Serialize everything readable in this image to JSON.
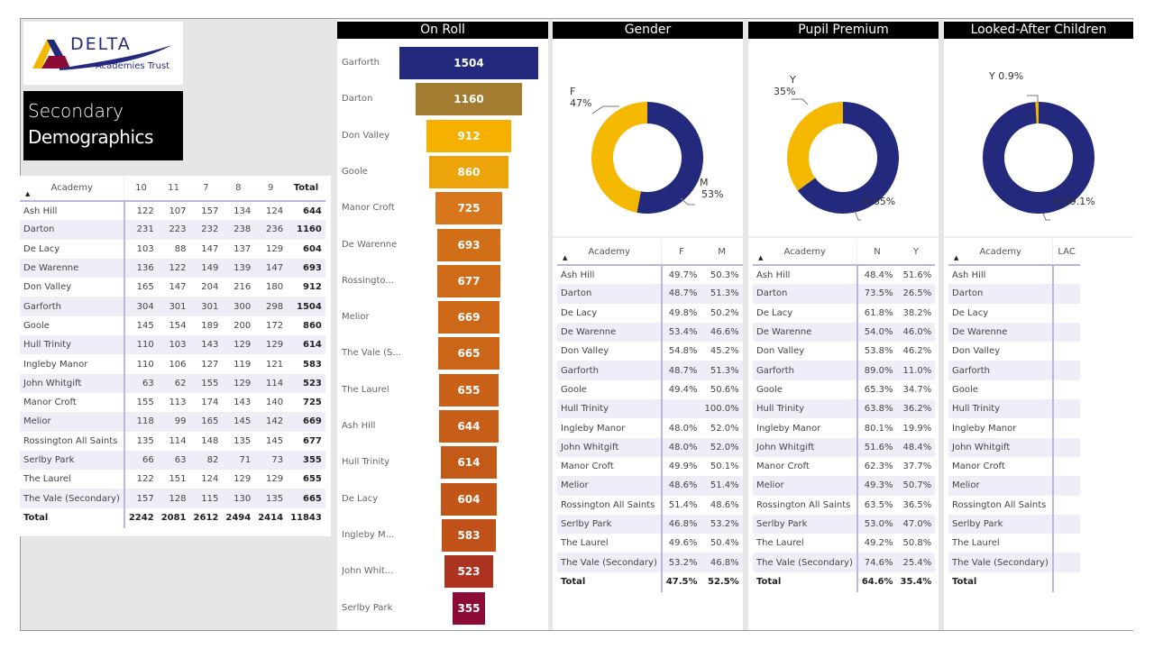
{
  "logo": {
    "brand": "DELTA",
    "subtitle": "Academies Trust"
  },
  "title": {
    "line1": "Secondary",
    "line2": "Demographics"
  },
  "colors": {
    "navy": "#232a7e",
    "gold": "#f5b800",
    "header_bg": "#000000",
    "stripe": "#eeeef8"
  },
  "left_table": {
    "headers": [
      "Academy",
      "10",
      "11",
      "7",
      "8",
      "9",
      "Total"
    ],
    "rows": [
      [
        "Ash Hill",
        "122",
        "107",
        "157",
        "134",
        "124",
        "644"
      ],
      [
        "Darton",
        "231",
        "223",
        "232",
        "238",
        "236",
        "1160"
      ],
      [
        "De Lacy",
        "103",
        "88",
        "147",
        "137",
        "129",
        "604"
      ],
      [
        "De Warenne",
        "136",
        "122",
        "149",
        "139",
        "147",
        "693"
      ],
      [
        "Don Valley",
        "165",
        "147",
        "204",
        "216",
        "180",
        "912"
      ],
      [
        "Garforth",
        "304",
        "301",
        "301",
        "300",
        "298",
        "1504"
      ],
      [
        "Goole",
        "145",
        "154",
        "189",
        "200",
        "172",
        "860"
      ],
      [
        "Hull Trinity",
        "110",
        "103",
        "143",
        "129",
        "129",
        "614"
      ],
      [
        "Ingleby Manor",
        "110",
        "106",
        "127",
        "119",
        "121",
        "583"
      ],
      [
        "John Whitgift",
        "63",
        "62",
        "155",
        "129",
        "114",
        "523"
      ],
      [
        "Manor Croft",
        "155",
        "113",
        "174",
        "143",
        "140",
        "725"
      ],
      [
        "Melior",
        "118",
        "99",
        "165",
        "145",
        "142",
        "669"
      ],
      [
        "Rossington All Saints",
        "135",
        "114",
        "148",
        "135",
        "145",
        "677"
      ],
      [
        "Serlby Park",
        "66",
        "63",
        "82",
        "71",
        "73",
        "355"
      ],
      [
        "The Laurel",
        "122",
        "151",
        "124",
        "129",
        "129",
        "655"
      ],
      [
        "The Vale (Secondary)",
        "157",
        "128",
        "115",
        "130",
        "135",
        "665"
      ]
    ],
    "total": [
      "Total",
      "2242",
      "2081",
      "2612",
      "2494",
      "2414",
      "11843"
    ]
  },
  "on_roll": {
    "title": "On Roll",
    "items": [
      {
        "label": "Garforth",
        "value": 1504,
        "color": "#232a7e"
      },
      {
        "label": "Darton",
        "value": 1160,
        "color": "#a37c32"
      },
      {
        "label": "Don Valley",
        "value": 912,
        "color": "#f5b000"
      },
      {
        "label": "Goole",
        "value": 860,
        "color": "#eda30a"
      },
      {
        "label": "Manor Croft",
        "value": 725,
        "color": "#d7761a"
      },
      {
        "label": "De Warenne",
        "value": 693,
        "color": "#d16f18"
      },
      {
        "label": "Rossingto...",
        "value": 677,
        "color": "#cf6b18"
      },
      {
        "label": "Melior",
        "value": 669,
        "color": "#cd6818"
      },
      {
        "label": "The Vale (S...",
        "value": 665,
        "color": "#cb6518"
      },
      {
        "label": "The Laurel",
        "value": 655,
        "color": "#c96218"
      },
      {
        "label": "Ash Hill",
        "value": 644,
        "color": "#c75e18"
      },
      {
        "label": "Hull Trinity",
        "value": 614,
        "color": "#c45a18"
      },
      {
        "label": "De Lacy",
        "value": 604,
        "color": "#c25618"
      },
      {
        "label": "Ingleby M...",
        "value": 583,
        "color": "#bf5119"
      },
      {
        "label": "John Whit...",
        "value": 523,
        "color": "#ac3320"
      },
      {
        "label": "Serlby Park",
        "value": 355,
        "color": "#8c0b36"
      }
    ]
  },
  "gender": {
    "title": "Gender",
    "donut": [
      {
        "label": "F",
        "pct": 47,
        "text": "47%",
        "color": "#f5b800"
      },
      {
        "label": "M",
        "pct": 53,
        "text": "53%",
        "color": "#232a7e"
      }
    ],
    "headers": [
      "Academy",
      "F",
      "M"
    ],
    "rows": [
      [
        "Ash Hill",
        "49.7%",
        "50.3%"
      ],
      [
        "Darton",
        "48.7%",
        "51.3%"
      ],
      [
        "De Lacy",
        "49.8%",
        "50.2%"
      ],
      [
        "De Warenne",
        "53.4%",
        "46.6%"
      ],
      [
        "Don Valley",
        "54.8%",
        "45.2%"
      ],
      [
        "Garforth",
        "48.7%",
        "51.3%"
      ],
      [
        "Goole",
        "49.4%",
        "50.6%"
      ],
      [
        "Hull Trinity",
        "",
        "100.0%"
      ],
      [
        "Ingleby Manor",
        "48.0%",
        "52.0%"
      ],
      [
        "John Whitgift",
        "48.0%",
        "52.0%"
      ],
      [
        "Manor Croft",
        "49.9%",
        "50.1%"
      ],
      [
        "Melior",
        "48.6%",
        "51.4%"
      ],
      [
        "Rossington All Saints",
        "51.4%",
        "48.6%"
      ],
      [
        "Serlby Park",
        "46.8%",
        "53.2%"
      ],
      [
        "The Laurel",
        "49.6%",
        "50.4%"
      ],
      [
        "The Vale (Secondary)",
        "53.2%",
        "46.8%"
      ]
    ],
    "total": [
      "Total",
      "47.5%",
      "52.5%"
    ]
  },
  "pupil_premium": {
    "title": "Pupil Premium",
    "donut": [
      {
        "label": "Y",
        "pct": 35,
        "text": "35%",
        "color": "#f5b800"
      },
      {
        "label": "N",
        "pct": 65,
        "text": "65%",
        "color": "#232a7e"
      }
    ],
    "headers": [
      "Academy",
      "N",
      "Y"
    ],
    "rows": [
      [
        "Ash Hill",
        "48.4%",
        "51.6%"
      ],
      [
        "Darton",
        "73.5%",
        "26.5%"
      ],
      [
        "De Lacy",
        "61.8%",
        "38.2%"
      ],
      [
        "De Warenne",
        "54.0%",
        "46.0%"
      ],
      [
        "Don Valley",
        "53.8%",
        "46.2%"
      ],
      [
        "Garforth",
        "89.0%",
        "11.0%"
      ],
      [
        "Goole",
        "65.3%",
        "34.7%"
      ],
      [
        "Hull Trinity",
        "63.8%",
        "36.2%"
      ],
      [
        "Ingleby Manor",
        "80.1%",
        "19.9%"
      ],
      [
        "John Whitgift",
        "51.6%",
        "48.4%"
      ],
      [
        "Manor Croft",
        "62.3%",
        "37.7%"
      ],
      [
        "Melior",
        "49.3%",
        "50.7%"
      ],
      [
        "Rossington All Saints",
        "63.5%",
        "36.5%"
      ],
      [
        "Serlby Park",
        "53.0%",
        "47.0%"
      ],
      [
        "The Laurel",
        "49.2%",
        "50.8%"
      ],
      [
        "The Vale (Secondary)",
        "74.6%",
        "25.4%"
      ]
    ],
    "total": [
      "Total",
      "64.6%",
      "35.4%"
    ]
  },
  "lac": {
    "title": "Looked-After Children",
    "donut": [
      {
        "label": "Y",
        "pct": 0.9,
        "text": "0.9%",
        "color": "#f5b800"
      },
      {
        "label": "N",
        "pct": 99.1,
        "text": "99.1%",
        "color": "#232a7e"
      }
    ],
    "headers": [
      "Academy",
      "LAC"
    ],
    "rows": [
      [
        "Ash Hill",
        ""
      ],
      [
        "Darton",
        ""
      ],
      [
        "De Lacy",
        ""
      ],
      [
        "De Warenne",
        ""
      ],
      [
        "Don Valley",
        ""
      ],
      [
        "Garforth",
        ""
      ],
      [
        "Goole",
        ""
      ],
      [
        "Hull Trinity",
        ""
      ],
      [
        "Ingleby Manor",
        ""
      ],
      [
        "John Whitgift",
        ""
      ],
      [
        "Manor Croft",
        ""
      ],
      [
        "Melior",
        ""
      ],
      [
        "Rossington All Saints",
        ""
      ],
      [
        "Serlby Park",
        ""
      ],
      [
        "The Laurel",
        ""
      ],
      [
        "The Vale (Secondary)",
        ""
      ]
    ],
    "total": [
      "Total",
      ""
    ]
  }
}
